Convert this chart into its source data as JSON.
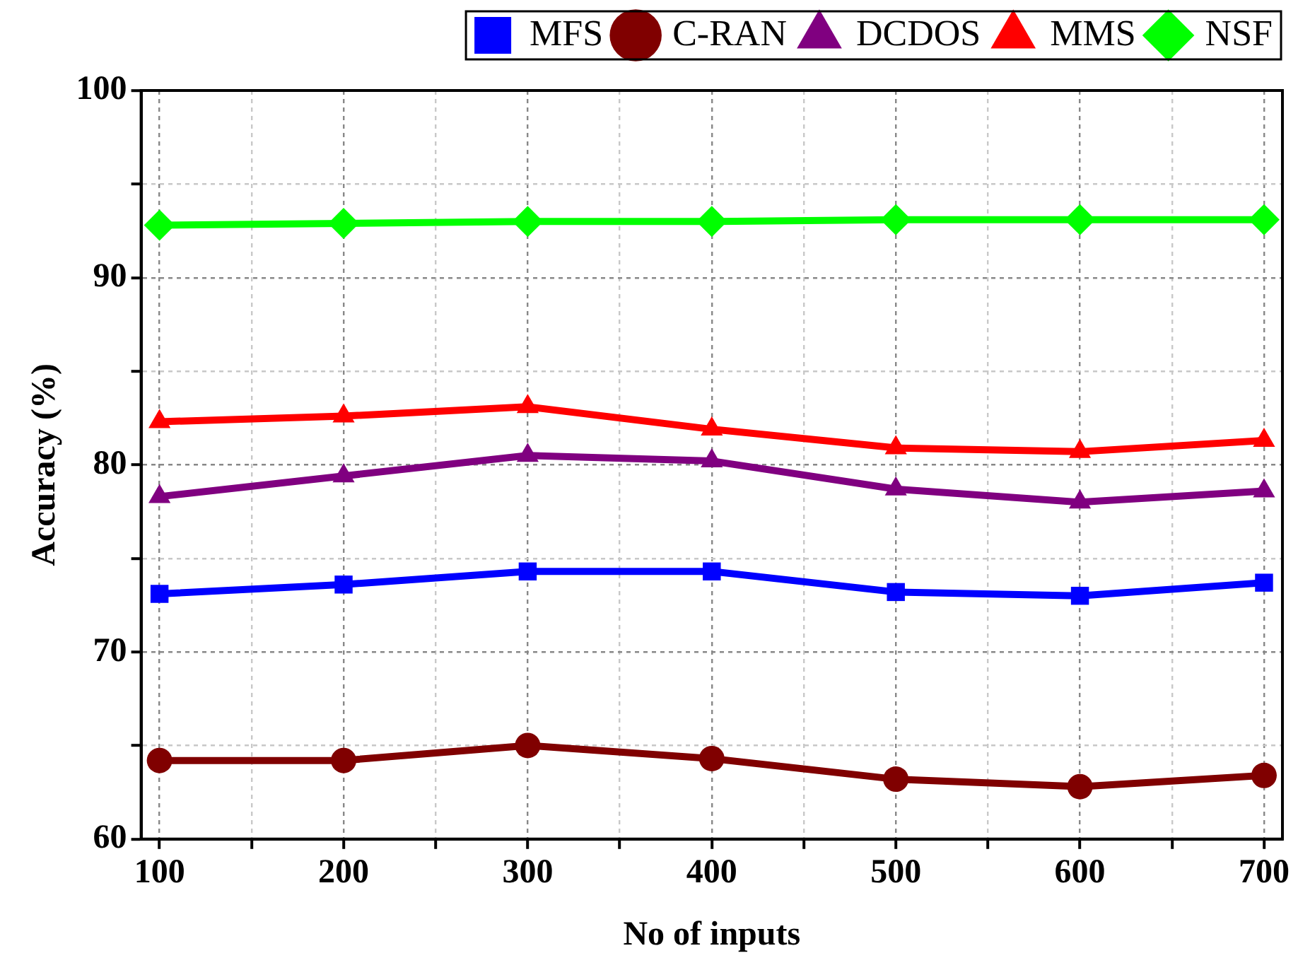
{
  "chart_data": {
    "type": "line",
    "xlabel": "No of inputs",
    "ylabel": "Accuracy (%)",
    "x": [
      100,
      200,
      300,
      400,
      500,
      600,
      700
    ],
    "xlim": [
      90,
      710
    ],
    "xticks": [
      100,
      {
        "value": 150,
        "label": null
      },
      200,
      {
        "value": 250,
        "label": null
      },
      300,
      {
        "value": 350,
        "label": null
      },
      400,
      {
        "value": 450,
        "label": null
      },
      500,
      {
        "value": 550,
        "label": null
      },
      600,
      {
        "value": 650,
        "label": null
      },
      700
    ],
    "ylim": [
      60,
      100
    ],
    "yticks": [
      60,
      {
        "value": 65,
        "label": null
      },
      70,
      {
        "value": 75,
        "label": null
      },
      80,
      {
        "value": 85,
        "label": null
      },
      90,
      {
        "value": 95,
        "label": null
      },
      100
    ],
    "grid": true,
    "legend": "top",
    "line_style": "solid",
    "series": [
      {
        "name": "MFS",
        "color": "#0000ff",
        "marker": "square",
        "values": [
          73.1,
          73.6,
          74.3,
          74.3,
          73.2,
          73.0,
          73.7
        ]
      },
      {
        "name": "C-RAN",
        "color": "#800000",
        "marker": "circle",
        "values": [
          64.2,
          64.2,
          65.0,
          64.3,
          63.2,
          62.8,
          63.4
        ]
      },
      {
        "name": "DCDOS",
        "color": "#800080",
        "marker": "triangle",
        "values": [
          78.3,
          79.4,
          80.5,
          80.2,
          78.7,
          78.0,
          78.6
        ]
      },
      {
        "name": "MMS",
        "color": "#ff0000",
        "marker": "triangle",
        "values": [
          82.3,
          82.6,
          83.1,
          81.9,
          80.9,
          80.7,
          81.3
        ]
      },
      {
        "name": "NSF",
        "color": "#00ff00",
        "marker": "diamond",
        "values": [
          92.8,
          92.9,
          93.0,
          93.0,
          93.1,
          93.1,
          93.1
        ]
      }
    ]
  }
}
